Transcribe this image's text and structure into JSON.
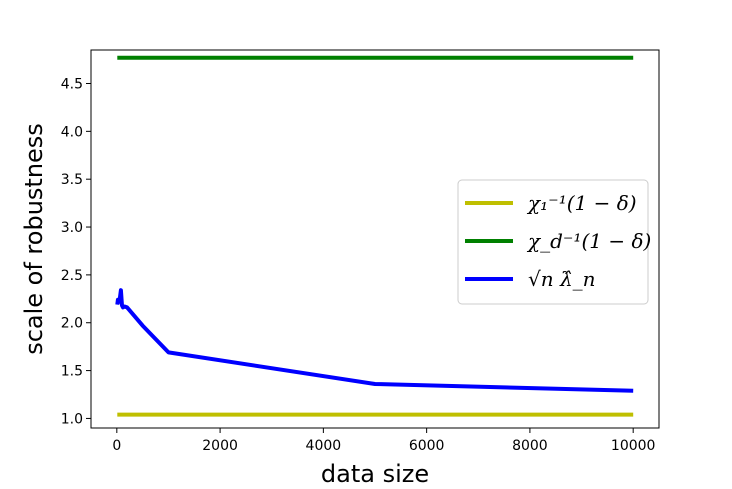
{
  "chart_data": {
    "type": "line",
    "title": "",
    "xlabel": "data size",
    "ylabel": "scale of robustness",
    "xlim": [
      -500,
      10500
    ],
    "ylim": [
      0.9,
      4.85
    ],
    "xticks": [
      0,
      2000,
      4000,
      6000,
      8000,
      10000
    ],
    "xtick_labels": [
      "0",
      "2000",
      "4000",
      "6000",
      "8000",
      "10000"
    ],
    "yticks": [
      1.0,
      1.5,
      2.0,
      2.5,
      3.0,
      3.5,
      4.0,
      4.5
    ],
    "ytick_labels": [
      "1.0",
      "1.5",
      "2.0",
      "2.5",
      "3.0",
      "3.5",
      "4.0",
      "4.5"
    ],
    "grid": false,
    "legend_position": "center-right",
    "series": [
      {
        "name": "χ₁⁻¹(1 − δ)",
        "legend_label": "χ₁⁻¹(1 − δ)",
        "color": "#bfbf00",
        "x": [
          10,
          10000
        ],
        "y": [
          1.04,
          1.04
        ]
      },
      {
        "name": "χ_d⁻¹(1 − δ)",
        "legend_label": "χ_d⁻¹(1 − δ)",
        "color": "#008000",
        "x": [
          10,
          10000
        ],
        "y": [
          4.77,
          4.77
        ]
      },
      {
        "name": "√n λ̂_n",
        "legend_label": "√n λ̂_n",
        "color": "#0000ff",
        "x": [
          10,
          20,
          50,
          80,
          100,
          120,
          150,
          200,
          500,
          1000,
          5000,
          10000
        ],
        "y": [
          2.19,
          2.24,
          2.22,
          2.34,
          2.18,
          2.16,
          2.17,
          2.16,
          1.97,
          1.69,
          1.36,
          1.29
        ]
      }
    ]
  }
}
